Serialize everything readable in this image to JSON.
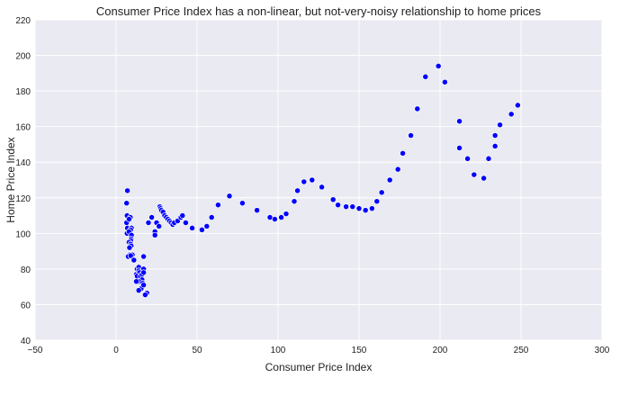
{
  "chart_data": {
    "type": "scatter",
    "title": "Consumer Price Index has a non-linear, but not-very-noisy relationship to home prices",
    "xlabel": "Consumer Price Index",
    "ylabel": "Home Price Index",
    "xlim": [
      -50,
      300
    ],
    "ylim": [
      40,
      220
    ],
    "xticks": [
      -50,
      0,
      50,
      100,
      150,
      200,
      250,
      300
    ],
    "yticks": [
      40,
      60,
      80,
      100,
      120,
      140,
      160,
      180,
      200,
      220
    ],
    "xtick_labels": [
      "−50",
      "0",
      "50",
      "100",
      "150",
      "200",
      "250",
      "300"
    ],
    "ytick_labels": [
      "40",
      "60",
      "80",
      "100",
      "120",
      "140",
      "160",
      "180",
      "200",
      "220"
    ],
    "grid": true,
    "colors": {
      "background": "#eaeaf2",
      "grid": "#ffffff",
      "point": "#0000ff",
      "point_edge": "#ffffff"
    },
    "series": [
      {
        "points": [
          [
            7,
            124
          ],
          [
            6.5,
            117
          ],
          [
            6.8,
            110
          ],
          [
            6.5,
            106
          ],
          [
            7,
            103
          ],
          [
            6.8,
            100
          ],
          [
            8.8,
            109
          ],
          [
            8,
            108
          ],
          [
            9.5,
            103
          ],
          [
            9,
            102
          ],
          [
            8,
            101
          ],
          [
            9.5,
            99
          ],
          [
            9.2,
            97
          ],
          [
            9,
            96
          ],
          [
            8,
            95
          ],
          [
            9,
            94
          ],
          [
            9.3,
            93
          ],
          [
            8.3,
            92
          ],
          [
            8.5,
            88
          ],
          [
            7.5,
            87
          ],
          [
            10,
            88
          ],
          [
            11,
            85
          ],
          [
            9,
            87.5
          ],
          [
            12.5,
            77
          ],
          [
            13,
            80
          ],
          [
            14,
            81
          ],
          [
            14,
            79
          ],
          [
            14.5,
            78
          ],
          [
            13,
            76
          ],
          [
            15,
            76
          ],
          [
            16,
            77
          ],
          [
            17,
            80
          ],
          [
            17,
            78
          ],
          [
            16,
            74
          ],
          [
            14,
            73
          ],
          [
            12.5,
            73
          ],
          [
            16.5,
            72
          ],
          [
            16,
            70
          ],
          [
            15.5,
            69
          ],
          [
            14,
            68
          ],
          [
            17,
            71
          ],
          [
            17,
            87
          ],
          [
            18.5,
            66
          ],
          [
            19,
            66.5
          ],
          [
            18,
            65.5
          ],
          [
            20,
            106
          ],
          [
            22,
            109
          ],
          [
            24,
            101
          ],
          [
            24,
            99
          ],
          [
            25,
            106
          ],
          [
            26.5,
            104
          ],
          [
            27,
            115
          ],
          [
            27.5,
            114
          ],
          [
            28,
            113
          ],
          [
            29,
            112
          ],
          [
            30,
            110
          ],
          [
            31,
            109
          ],
          [
            32,
            108
          ],
          [
            33,
            107
          ],
          [
            34,
            106
          ],
          [
            35,
            105
          ],
          [
            36,
            106
          ],
          [
            38,
            107
          ],
          [
            40,
            109
          ],
          [
            41,
            110
          ],
          [
            43,
            106
          ],
          [
            47,
            103
          ],
          [
            53,
            102
          ],
          [
            56,
            104
          ],
          [
            59,
            109
          ],
          [
            63,
            116
          ],
          [
            70,
            121
          ],
          [
            78,
            117
          ],
          [
            87,
            113
          ],
          [
            95,
            109
          ],
          [
            98,
            108
          ],
          [
            102,
            109
          ],
          [
            105,
            111
          ],
          [
            110,
            118
          ],
          [
            112,
            124
          ],
          [
            116,
            129
          ],
          [
            121,
            130
          ],
          [
            127,
            126
          ],
          [
            134,
            119
          ],
          [
            137,
            116
          ],
          [
            142,
            115
          ],
          [
            146,
            115
          ],
          [
            150,
            114
          ],
          [
            154,
            113
          ],
          [
            158,
            114
          ],
          [
            161,
            118
          ],
          [
            164,
            123
          ],
          [
            169,
            130
          ],
          [
            174,
            136
          ],
          [
            177,
            145
          ],
          [
            182,
            155
          ],
          [
            186,
            170
          ],
          [
            191,
            188
          ],
          [
            199,
            194
          ],
          [
            203,
            185
          ],
          [
            212,
            148
          ],
          [
            212,
            163
          ],
          [
            217,
            142
          ],
          [
            221,
            133
          ],
          [
            227,
            131
          ],
          [
            230,
            142
          ],
          [
            234,
            149
          ],
          [
            234,
            155
          ],
          [
            237,
            161
          ],
          [
            244,
            167
          ],
          [
            248,
            172
          ]
        ]
      }
    ]
  }
}
